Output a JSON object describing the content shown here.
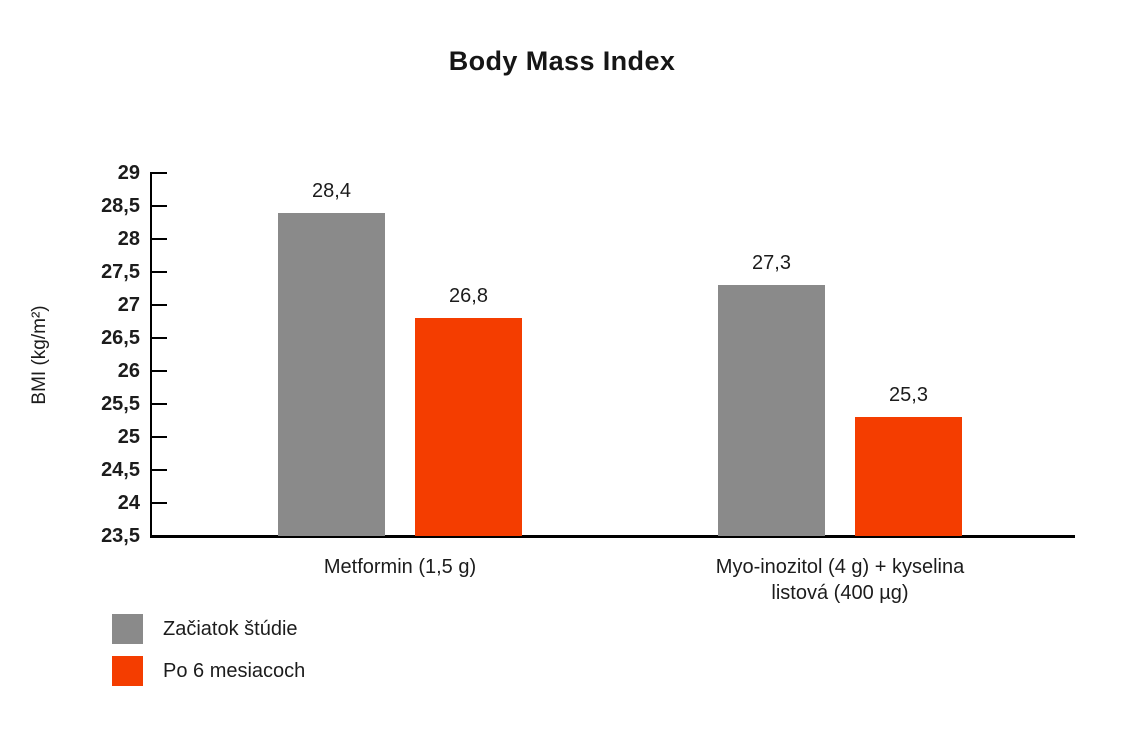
{
  "chart_data": {
    "type": "bar",
    "title": "Body Mass Index",
    "ylabel": "BMI (kg/m²)",
    "xlabel": "",
    "categories": [
      "Metformin (1,5 g)",
      "Myo-inozitol (4 g) + kyselina\nlistová (400 µg)"
    ],
    "series": [
      {
        "name": "Začiatok štúdie",
        "color": "#8A8A8A",
        "values": [
          28.4,
          27.3
        ],
        "value_labels": [
          "28,4",
          "27,3"
        ]
      },
      {
        "name": "Po 6 mesiacoch",
        "color": "#F43D00",
        "values": [
          26.8,
          25.3
        ],
        "value_labels": [
          "26,8",
          "25,3"
        ]
      }
    ],
    "ylim": [
      23.5,
      29
    ],
    "ytick_step": 0.5,
    "yticks": [
      {
        "value": 29,
        "label": "29"
      },
      {
        "value": 28.5,
        "label": "28,5"
      },
      {
        "value": 28,
        "label": "28"
      },
      {
        "value": 27.5,
        "label": "27,5"
      },
      {
        "value": 27,
        "label": "27"
      },
      {
        "value": 26.5,
        "label": "26,5"
      },
      {
        "value": 26,
        "label": "26"
      },
      {
        "value": 25.5,
        "label": "25,5"
      },
      {
        "value": 25,
        "label": "25"
      },
      {
        "value": 24.5,
        "label": "24,5"
      },
      {
        "value": 24,
        "label": "24"
      },
      {
        "value": 23.5,
        "label": "23,5"
      }
    ],
    "grid": false,
    "legend_position": "bottom-left",
    "decimal_separator": ",",
    "colors": {
      "axis": "#000000",
      "text": "#1C1C1C",
      "background": "#FFFFFF"
    }
  }
}
